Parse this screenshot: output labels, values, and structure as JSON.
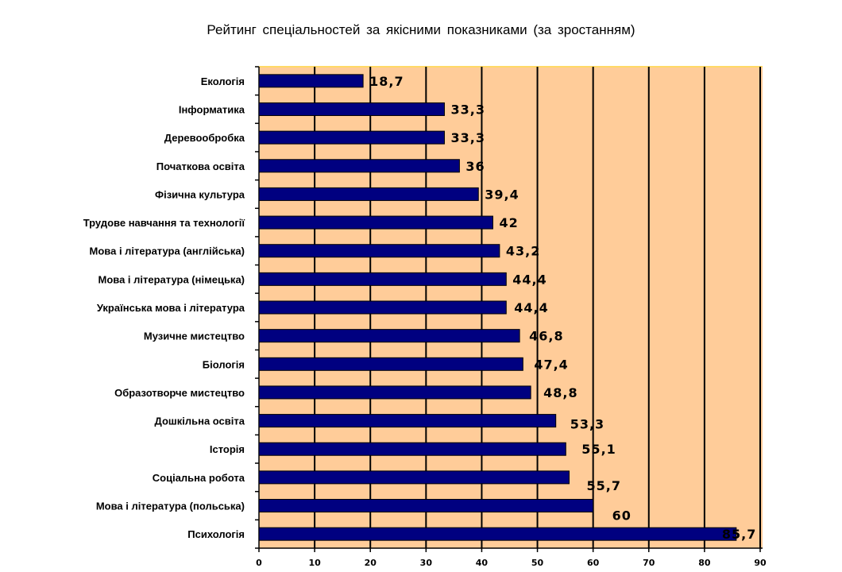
{
  "chart_data": {
    "type": "bar",
    "orientation": "horizontal",
    "title": "Рейтинг спеціальностей за якісними показниками (за зростанням)",
    "categories": [
      "Екологія",
      "Інформатика",
      "Деревообробка",
      "Початкова освіта",
      "Фізична культура",
      "Трудове навчання та технології",
      "Мова і література (англійська)",
      "Мова і література (німецька)",
      "Українська мова і література",
      "Музичне мистецтво",
      "Біологія",
      "Образотворче мистецтво",
      "Дошкільна освіта",
      "Історія",
      "Соціальна робота",
      "Мова і література (польська)",
      "Психологія"
    ],
    "values": [
      18.7,
      33.3,
      33.3,
      36,
      39.4,
      42,
      43.2,
      44.4,
      44.4,
      46.8,
      47.4,
      48.8,
      53.3,
      55.1,
      55.7,
      60,
      85.7
    ],
    "value_labels": [
      "18,7",
      "33,3",
      "33,3",
      "36",
      "39,4",
      "42",
      "43,2",
      "44,4",
      "44,4",
      "46,8",
      "47,4",
      "48,8",
      "53,3",
      "55,1",
      "55,7",
      "60",
      "85,7"
    ],
    "xlim": [
      0,
      90
    ],
    "xticks": [
      "0",
      "10",
      "20",
      "30",
      "40",
      "50",
      "60",
      "70",
      "80",
      "90"
    ],
    "grid": true,
    "colors": {
      "bar": "#000080",
      "plot_bg": "#FFCC99",
      "grid": "#000000"
    }
  }
}
